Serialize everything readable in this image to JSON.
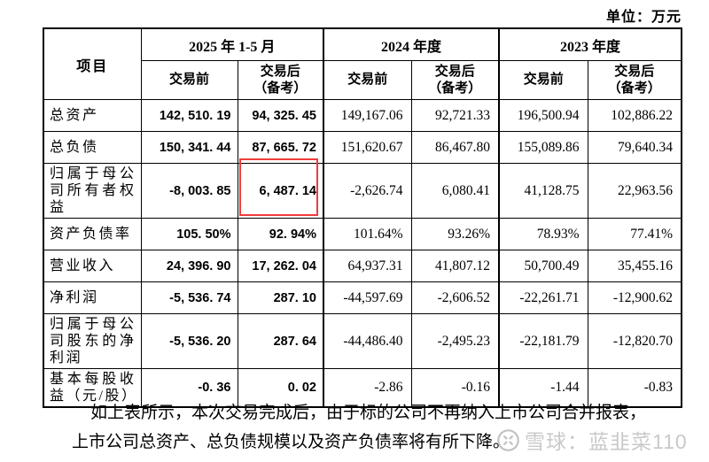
{
  "unit_label": "单位：万元",
  "colors": {
    "highlight_red": "#f23c3c",
    "watermark_gray": "#c9c9c9",
    "border": "#000000",
    "background": "#ffffff"
  },
  "table": {
    "item_header": "项目",
    "groups": [
      {
        "period": "2025 年 1-5 月",
        "pre": "交易前",
        "post": "交易后\n（备考）"
      },
      {
        "period": "2024 年度",
        "pre": "交易前",
        "post": "交易后\n（备考）"
      },
      {
        "period": "2023 年度",
        "pre": "交易前",
        "post": "交易后\n（备考）"
      }
    ],
    "rows": [
      {
        "label": "总资产",
        "values": [
          "142, 510. 19",
          "94, 325. 45",
          "149,167.06",
          "92,721.33",
          "196,500.94",
          "102,886.22"
        ]
      },
      {
        "label": "总负债",
        "values": [
          "150, 341. 44",
          "87, 665. 72",
          "151,620.67",
          "86,467.80",
          "155,089.86",
          "79,640.34"
        ]
      },
      {
        "label": "归属于母公司所有者权益",
        "values": [
          "-8, 003. 85",
          "6, 487. 14",
          "-2,626.74",
          "6,080.41",
          "41,128.75",
          "22,963.56"
        ]
      },
      {
        "label": "资产负债率",
        "values": [
          "105. 50%",
          "92. 94%",
          "101.64%",
          "93.26%",
          "78.93%",
          "77.41%"
        ]
      },
      {
        "label": "营业收入",
        "values": [
          "24, 396. 90",
          "17, 262. 04",
          "64,937.31",
          "41,807.12",
          "50,700.49",
          "35,455.16"
        ]
      },
      {
        "label": "净利润",
        "values": [
          "-5, 536. 74",
          "287. 10",
          "-44,597.69",
          "-2,606.52",
          "-22,261.71",
          "-12,900.62"
        ]
      },
      {
        "label": "归属于母公司股东的净利润",
        "values": [
          "-5, 536. 20",
          "287. 64",
          "-44,486.40",
          "-2,495.23",
          "-22,181.79",
          "-12,820.70"
        ]
      },
      {
        "label": "基本每股收益（元/股）",
        "values": [
          "-0. 36",
          "0. 02",
          "-2.86",
          "-0.16",
          "-1.44",
          "-0.83"
        ]
      }
    ],
    "highlight": {
      "row": 2,
      "col": 1
    }
  },
  "footer": {
    "line1": "如上表所示，本次交易完成后，由于标的公司不再纳入上市公司合并报表，",
    "line2": "上市公司总资产、总负债规模以及资产负债率将有所下降。"
  },
  "watermark": {
    "text": "雪球：蓝韭菜110",
    "logo": "xueqiu-logo"
  }
}
